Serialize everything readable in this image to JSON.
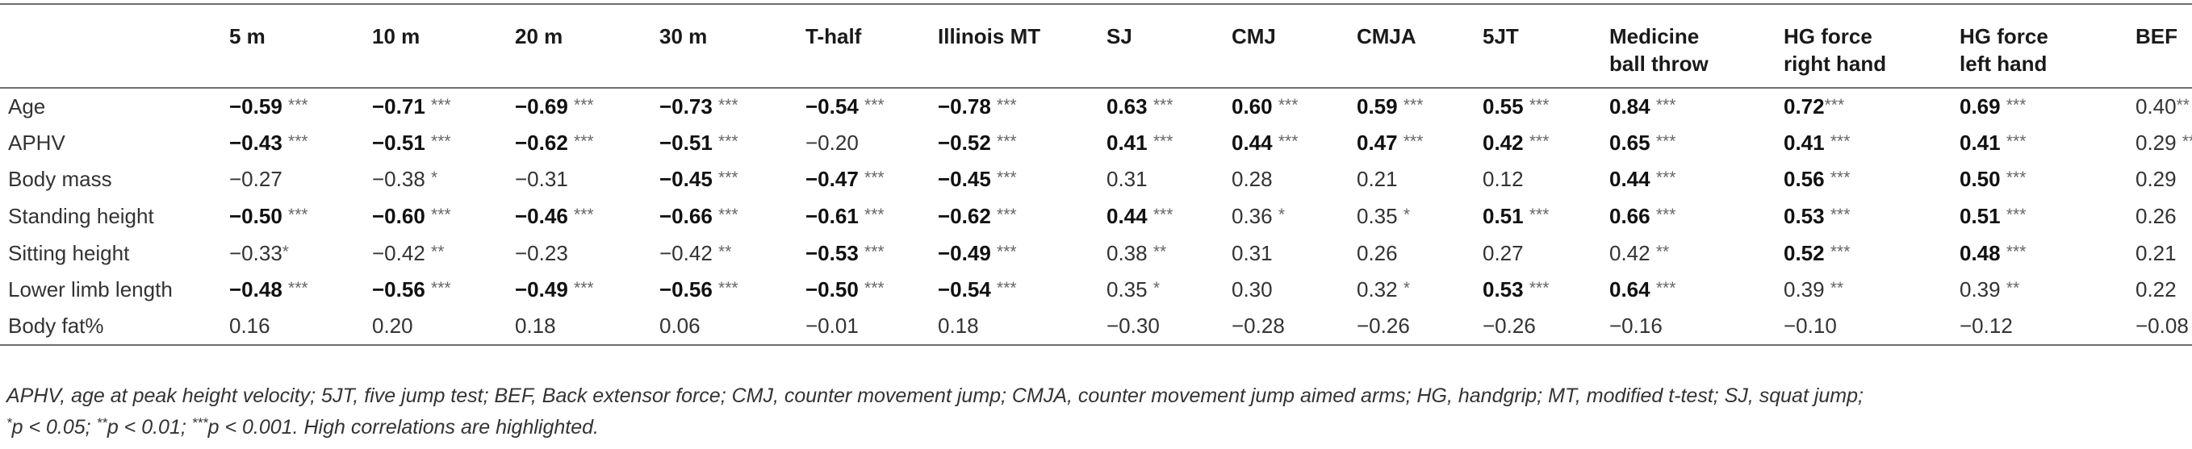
{
  "table": {
    "corner": "",
    "columns": [
      {
        "lines": [
          "5 m"
        ]
      },
      {
        "lines": [
          "10 m"
        ]
      },
      {
        "lines": [
          "20 m"
        ]
      },
      {
        "lines": [
          "30 m"
        ]
      },
      {
        "lines": [
          "T-half"
        ]
      },
      {
        "lines": [
          "Illinois MT"
        ]
      },
      {
        "lines": [
          "SJ"
        ]
      },
      {
        "lines": [
          "CMJ"
        ]
      },
      {
        "lines": [
          "CMJA"
        ]
      },
      {
        "lines": [
          "5JT"
        ]
      },
      {
        "lines": [
          "Medicine",
          "ball throw"
        ]
      },
      {
        "lines": [
          "HG force",
          "right hand"
        ]
      },
      {
        "lines": [
          "HG force",
          "left hand"
        ]
      },
      {
        "lines": [
          "BEF"
        ]
      }
    ],
    "rows": [
      {
        "label": "Age",
        "cells": [
          {
            "v": "−0.59",
            "s": "***",
            "b": true,
            "sp": true
          },
          {
            "v": "−0.71",
            "s": "***",
            "b": true,
            "sp": true
          },
          {
            "v": "−0.69",
            "s": "***",
            "b": true,
            "sp": true
          },
          {
            "v": "−0.73",
            "s": "***",
            "b": true,
            "sp": true
          },
          {
            "v": "−0.54",
            "s": "***",
            "b": true,
            "sp": true
          },
          {
            "v": "−0.78",
            "s": "***",
            "b": true,
            "sp": true
          },
          {
            "v": "0.63",
            "s": "***",
            "b": true,
            "sp": true
          },
          {
            "v": "0.60",
            "s": "***",
            "b": true,
            "sp": true
          },
          {
            "v": "0.59",
            "s": "***",
            "b": true,
            "sp": true
          },
          {
            "v": "0.55",
            "s": "***",
            "b": true,
            "sp": true
          },
          {
            "v": "0.84",
            "s": "***",
            "b": true,
            "sp": true
          },
          {
            "v": "0.72",
            "s": "***",
            "b": true,
            "sp": false
          },
          {
            "v": "0.69",
            "s": "***",
            "b": true,
            "sp": true
          },
          {
            "v": "0.40",
            "s": "**",
            "b": false,
            "sp": false
          }
        ]
      },
      {
        "label": "APHV",
        "cells": [
          {
            "v": "−0.43",
            "s": "***",
            "b": true,
            "sp": true
          },
          {
            "v": "−0.51",
            "s": "***",
            "b": true,
            "sp": true
          },
          {
            "v": "−0.62",
            "s": "***",
            "b": true,
            "sp": true
          },
          {
            "v": "−0.51",
            "s": "***",
            "b": true,
            "sp": true
          },
          {
            "v": "−0.20",
            "s": "",
            "b": false,
            "sp": false
          },
          {
            "v": "−0.52",
            "s": "***",
            "b": true,
            "sp": true
          },
          {
            "v": "0.41",
            "s": "***",
            "b": true,
            "sp": true
          },
          {
            "v": "0.44",
            "s": "***",
            "b": true,
            "sp": true
          },
          {
            "v": "0.47",
            "s": "***",
            "b": true,
            "sp": true
          },
          {
            "v": "0.42",
            "s": "***",
            "b": true,
            "sp": true
          },
          {
            "v": "0.65",
            "s": "***",
            "b": true,
            "sp": true
          },
          {
            "v": "0.41",
            "s": "***",
            "b": true,
            "sp": true
          },
          {
            "v": "0.41",
            "s": "***",
            "b": true,
            "sp": true
          },
          {
            "v": "0.29",
            "s": "**",
            "b": false,
            "sp": true
          }
        ]
      },
      {
        "label": "Body mass",
        "cells": [
          {
            "v": "−0.27",
            "s": "",
            "b": false,
            "sp": false
          },
          {
            "v": "−0.38",
            "s": "*",
            "b": false,
            "sp": true
          },
          {
            "v": "−0.31",
            "s": "",
            "b": false,
            "sp": false
          },
          {
            "v": "−0.45",
            "s": "***",
            "b": true,
            "sp": true
          },
          {
            "v": "−0.47",
            "s": "***",
            "b": true,
            "sp": true
          },
          {
            "v": "−0.45",
            "s": "***",
            "b": true,
            "sp": true
          },
          {
            "v": "0.31",
            "s": "",
            "b": false,
            "sp": false
          },
          {
            "v": "0.28",
            "s": "",
            "b": false,
            "sp": false
          },
          {
            "v": "0.21",
            "s": "",
            "b": false,
            "sp": false
          },
          {
            "v": "0.12",
            "s": "",
            "b": false,
            "sp": false
          },
          {
            "v": "0.44",
            "s": "***",
            "b": true,
            "sp": true
          },
          {
            "v": "0.56",
            "s": "***",
            "b": true,
            "sp": true
          },
          {
            "v": "0.50",
            "s": "***",
            "b": true,
            "sp": true
          },
          {
            "v": "0.29",
            "s": "",
            "b": false,
            "sp": false
          }
        ]
      },
      {
        "label": "Standing height",
        "cells": [
          {
            "v": "−0.50",
            "s": "***",
            "b": true,
            "sp": true
          },
          {
            "v": "−0.60",
            "s": "***",
            "b": true,
            "sp": true
          },
          {
            "v": "−0.46",
            "s": "***",
            "b": true,
            "sp": true
          },
          {
            "v": "−0.66",
            "s": "***",
            "b": true,
            "sp": true
          },
          {
            "v": "−0.61",
            "s": "***",
            "b": true,
            "sp": true
          },
          {
            "v": "−0.62",
            "s": "***",
            "b": true,
            "sp": true
          },
          {
            "v": "0.44",
            "s": "***",
            "b": true,
            "sp": true
          },
          {
            "v": "0.36",
            "s": "*",
            "b": false,
            "sp": true
          },
          {
            "v": "0.35",
            "s": "*",
            "b": false,
            "sp": true
          },
          {
            "v": "0.51",
            "s": "***",
            "b": true,
            "sp": true
          },
          {
            "v": "0.66",
            "s": "***",
            "b": true,
            "sp": true
          },
          {
            "v": "0.53",
            "s": "***",
            "b": true,
            "sp": true
          },
          {
            "v": "0.51",
            "s": "***",
            "b": true,
            "sp": true
          },
          {
            "v": "0.26",
            "s": "",
            "b": false,
            "sp": false
          }
        ]
      },
      {
        "label": "Sitting height",
        "cells": [
          {
            "v": "−0.33",
            "s": "*",
            "b": false,
            "sp": false
          },
          {
            "v": "−0.42",
            "s": "**",
            "b": false,
            "sp": true
          },
          {
            "v": "−0.23",
            "s": "",
            "b": false,
            "sp": false
          },
          {
            "v": "−0.42",
            "s": "**",
            "b": false,
            "sp": true
          },
          {
            "v": "−0.53",
            "s": "***",
            "b": true,
            "sp": true
          },
          {
            "v": "−0.49",
            "s": "***",
            "b": true,
            "sp": true
          },
          {
            "v": "0.38",
            "s": "**",
            "b": false,
            "sp": true
          },
          {
            "v": "0.31",
            "s": "",
            "b": false,
            "sp": false
          },
          {
            "v": "0.26",
            "s": "",
            "b": false,
            "sp": false
          },
          {
            "v": "0.27",
            "s": "",
            "b": false,
            "sp": false
          },
          {
            "v": "0.42",
            "s": "**",
            "b": false,
            "sp": true
          },
          {
            "v": "0.52",
            "s": "***",
            "b": true,
            "sp": true
          },
          {
            "v": "0.48",
            "s": "***",
            "b": true,
            "sp": true
          },
          {
            "v": "0.21",
            "s": "",
            "b": false,
            "sp": false
          }
        ]
      },
      {
        "label": "Lower limb length",
        "cells": [
          {
            "v": "−0.48",
            "s": "***",
            "b": true,
            "sp": true
          },
          {
            "v": "−0.56",
            "s": "***",
            "b": true,
            "sp": true
          },
          {
            "v": "−0.49",
            "s": "***",
            "b": true,
            "sp": true
          },
          {
            "v": "−0.56",
            "s": "***",
            "b": true,
            "sp": true
          },
          {
            "v": "−0.50",
            "s": "***",
            "b": true,
            "sp": true
          },
          {
            "v": "−0.54",
            "s": "***",
            "b": true,
            "sp": true
          },
          {
            "v": "0.35",
            "s": "*",
            "b": false,
            "sp": true
          },
          {
            "v": "0.30",
            "s": "",
            "b": false,
            "sp": false
          },
          {
            "v": "0.32",
            "s": "*",
            "b": false,
            "sp": true
          },
          {
            "v": "0.53",
            "s": "***",
            "b": true,
            "sp": true
          },
          {
            "v": "0.64",
            "s": "***",
            "b": true,
            "sp": true
          },
          {
            "v": "0.39",
            "s": "**",
            "b": false,
            "sp": true
          },
          {
            "v": "0.39",
            "s": "**",
            "b": false,
            "sp": true
          },
          {
            "v": "0.22",
            "s": "",
            "b": false,
            "sp": false
          }
        ]
      },
      {
        "label": "Body fat%",
        "cells": [
          {
            "v": "0.16",
            "s": "",
            "b": false,
            "sp": false
          },
          {
            "v": "0.20",
            "s": "",
            "b": false,
            "sp": false
          },
          {
            "v": "0.18",
            "s": "",
            "b": false,
            "sp": false
          },
          {
            "v": "0.06",
            "s": "",
            "b": false,
            "sp": false
          },
          {
            "v": "−0.01",
            "s": "",
            "b": false,
            "sp": false
          },
          {
            "v": "0.18",
            "s": "",
            "b": false,
            "sp": false
          },
          {
            "v": "−0.30",
            "s": "",
            "b": false,
            "sp": false
          },
          {
            "v": "−0.28",
            "s": "",
            "b": false,
            "sp": false
          },
          {
            "v": "−0.26",
            "s": "",
            "b": false,
            "sp": false
          },
          {
            "v": "−0.26",
            "s": "",
            "b": false,
            "sp": false
          },
          {
            "v": "−0.16",
            "s": "",
            "b": false,
            "sp": false
          },
          {
            "v": "−0.10",
            "s": "",
            "b": false,
            "sp": false
          },
          {
            "v": "−0.12",
            "s": "",
            "b": false,
            "sp": false
          },
          {
            "v": "−0.08",
            "s": "",
            "b": false,
            "sp": false
          }
        ]
      }
    ]
  },
  "footnote": {
    "line1": "APHV, age at peak height velocity; 5JT, five jump test; BEF, Back extensor force; CMJ, counter movement jump; CMJA, counter movement jump aimed arms; HG, handgrip; MT, modified t-test; SJ, squat jump;",
    "star1": "*",
    "p1": "p < 0.05; ",
    "star2": "**",
    "p2": "p < 0.01; ",
    "star3": "***",
    "p3": "p < 0.001. High correlations are highlighted."
  }
}
